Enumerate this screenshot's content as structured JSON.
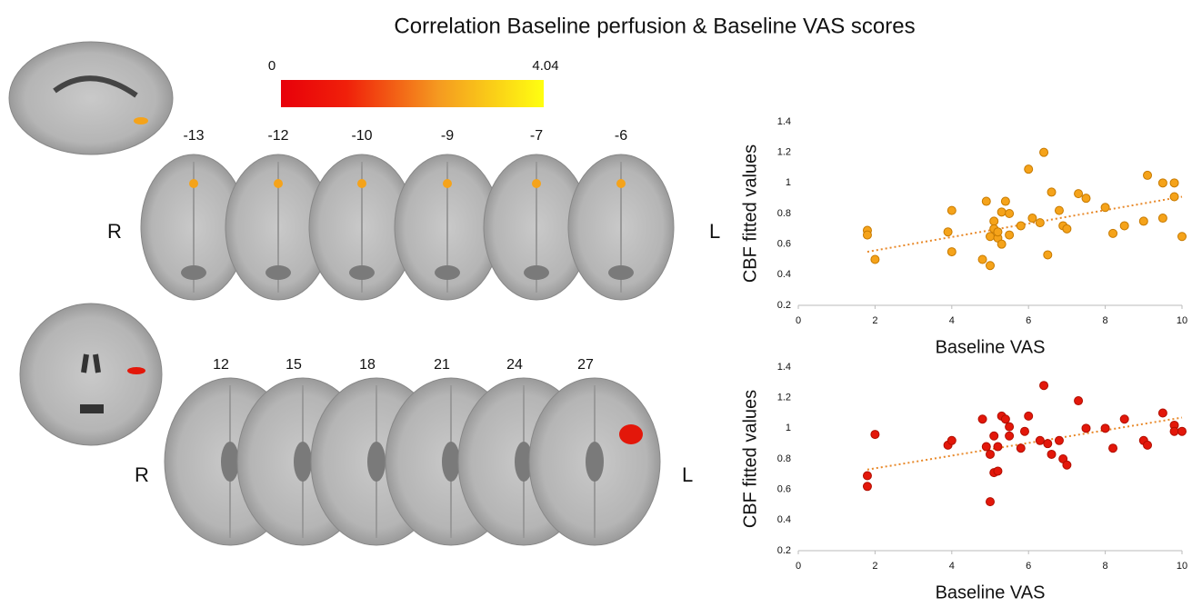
{
  "title": "Correlation Baseline perfusion & Baseline VAS scores",
  "colorbar": {
    "min": 0,
    "max": 4.04
  },
  "axial_slices": {
    "labels": [
      -13,
      -12,
      -10,
      -9,
      -7,
      -6
    ],
    "right": "R",
    "left": "L"
  },
  "coronal_slices": {
    "labels": [
      12,
      15,
      18,
      21,
      24,
      27
    ],
    "right": "R",
    "left": "L"
  },
  "chart_data": [
    {
      "type": "scatter",
      "xlabel": "Baseline VAS",
      "ylabel": "CBF fitted values",
      "color": "#f5a31a",
      "edge": "#c77a00",
      "trend_color": "#e8892a",
      "x": [
        1.8,
        1.8,
        2,
        3.9,
        4,
        4,
        4.8,
        4.9,
        5,
        5,
        5.1,
        5.1,
        5.2,
        5.2,
        5.3,
        5.3,
        5.4,
        5.5,
        5.5,
        5.8,
        6,
        6.1,
        6.3,
        6.4,
        6.5,
        6.6,
        6.8,
        6.9,
        7,
        7.3,
        7.5,
        8,
        8.2,
        8.5,
        9,
        9.1,
        9.5,
        9.5,
        9.8,
        9.8,
        10
      ],
      "y": [
        0.69,
        0.66,
        0.5,
        0.68,
        0.82,
        0.55,
        0.5,
        0.88,
        0.65,
        0.46,
        0.75,
        0.7,
        0.64,
        0.68,
        0.81,
        0.6,
        0.88,
        0.8,
        0.66,
        0.72,
        1.09,
        0.77,
        0.74,
        1.2,
        0.53,
        0.94,
        0.82,
        0.72,
        0.7,
        0.93,
        0.9,
        0.84,
        0.67,
        0.72,
        0.75,
        1.05,
        0.77,
        1.0,
        1.0,
        0.91,
        0.65
      ],
      "trendline": {
        "x": [
          1.8,
          10
        ],
        "y": [
          0.55,
          0.91
        ]
      },
      "xlim": [
        0,
        10
      ],
      "xticks": [
        0,
        2,
        4,
        6,
        8,
        10
      ],
      "ylim": [
        0.2,
        1.4
      ],
      "yticks": [
        0.2,
        0.4,
        0.6,
        0.8,
        1,
        1.2,
        1.4
      ]
    },
    {
      "type": "scatter",
      "xlabel": "Baseline VAS",
      "ylabel": "CBF fitted values",
      "color": "#e3170a",
      "edge": "#b00e00",
      "trend_color": "#e8892a",
      "x": [
        1.8,
        1.8,
        2,
        3.9,
        4,
        4.8,
        4.9,
        5,
        5,
        5.1,
        5.1,
        5.2,
        5.2,
        5.3,
        5.4,
        5.5,
        5.5,
        5.8,
        5.9,
        6,
        6.3,
        6.4,
        6.5,
        6.6,
        6.8,
        6.9,
        7,
        7.3,
        7.5,
        8,
        8.2,
        8.5,
        9,
        9.1,
        9.5,
        9.8,
        9.8,
        10
      ],
      "y": [
        0.69,
        0.62,
        0.96,
        0.89,
        0.92,
        1.06,
        0.88,
        0.52,
        0.83,
        0.71,
        0.95,
        0.88,
        0.72,
        1.08,
        1.06,
        0.95,
        1.01,
        0.87,
        0.98,
        1.08,
        0.92,
        1.28,
        0.9,
        0.83,
        0.92,
        0.8,
        0.76,
        1.18,
        1.0,
        1.0,
        0.87,
        1.06,
        0.92,
        0.89,
        1.1,
        1.02,
        0.98,
        0.98
      ],
      "trendline": {
        "x": [
          1.8,
          10
        ],
        "y": [
          0.73,
          1.07
        ]
      },
      "xlim": [
        0,
        10
      ],
      "xticks": [
        0,
        2,
        4,
        6,
        8,
        10
      ],
      "ylim": [
        0.2,
        1.4
      ],
      "yticks": [
        0.2,
        0.4,
        0.6,
        0.8,
        1,
        1.2,
        1.4
      ]
    }
  ]
}
